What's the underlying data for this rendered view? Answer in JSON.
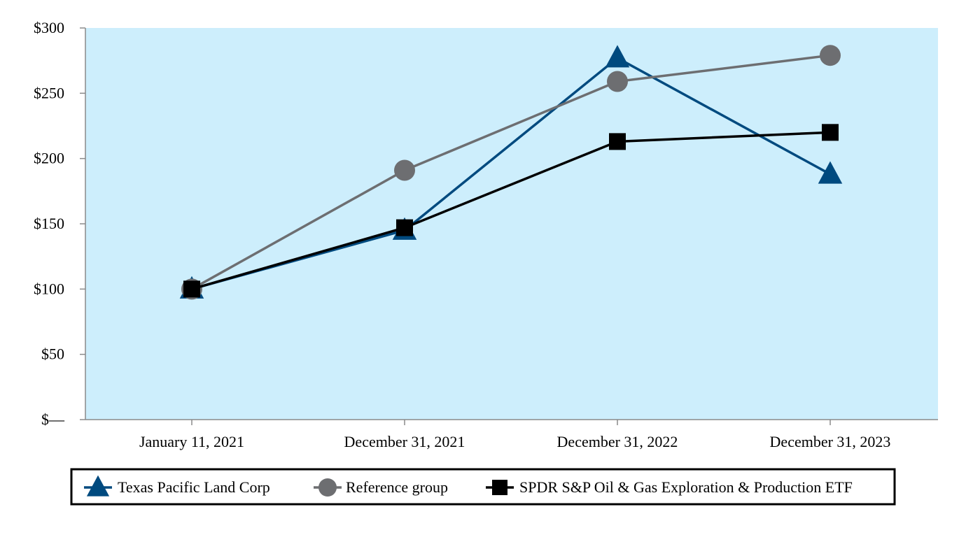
{
  "chart_data": {
    "type": "line",
    "categories": [
      "January 11, 2021",
      "December 31, 2021",
      "December 31, 2022",
      "December 31, 2023"
    ],
    "series": [
      {
        "name": "Texas Pacific Land Corp",
        "values": [
          100,
          145,
          277,
          188
        ],
        "color": "#004a7f",
        "marker": "triangle"
      },
      {
        "name": "Reference group",
        "values": [
          100,
          191,
          259,
          279
        ],
        "color": "#6d6e71",
        "marker": "circle"
      },
      {
        "name": "SPDR S&P Oil & Gas Exploration & Production ETF",
        "values": [
          100,
          147,
          213,
          220
        ],
        "color": "#000000",
        "marker": "square"
      }
    ],
    "yticks": [
      {
        "value": 0,
        "label": "$—"
      },
      {
        "value": 50,
        "label": "$50"
      },
      {
        "value": 100,
        "label": "$100"
      },
      {
        "value": 150,
        "label": "$150"
      },
      {
        "value": 200,
        "label": "$200"
      },
      {
        "value": 250,
        "label": "$250"
      },
      {
        "value": 300,
        "label": "$300"
      }
    ],
    "ylim": [
      0,
      300
    ],
    "grid": false,
    "plot_background": "#cdeefc",
    "legend_position": "bottom"
  }
}
